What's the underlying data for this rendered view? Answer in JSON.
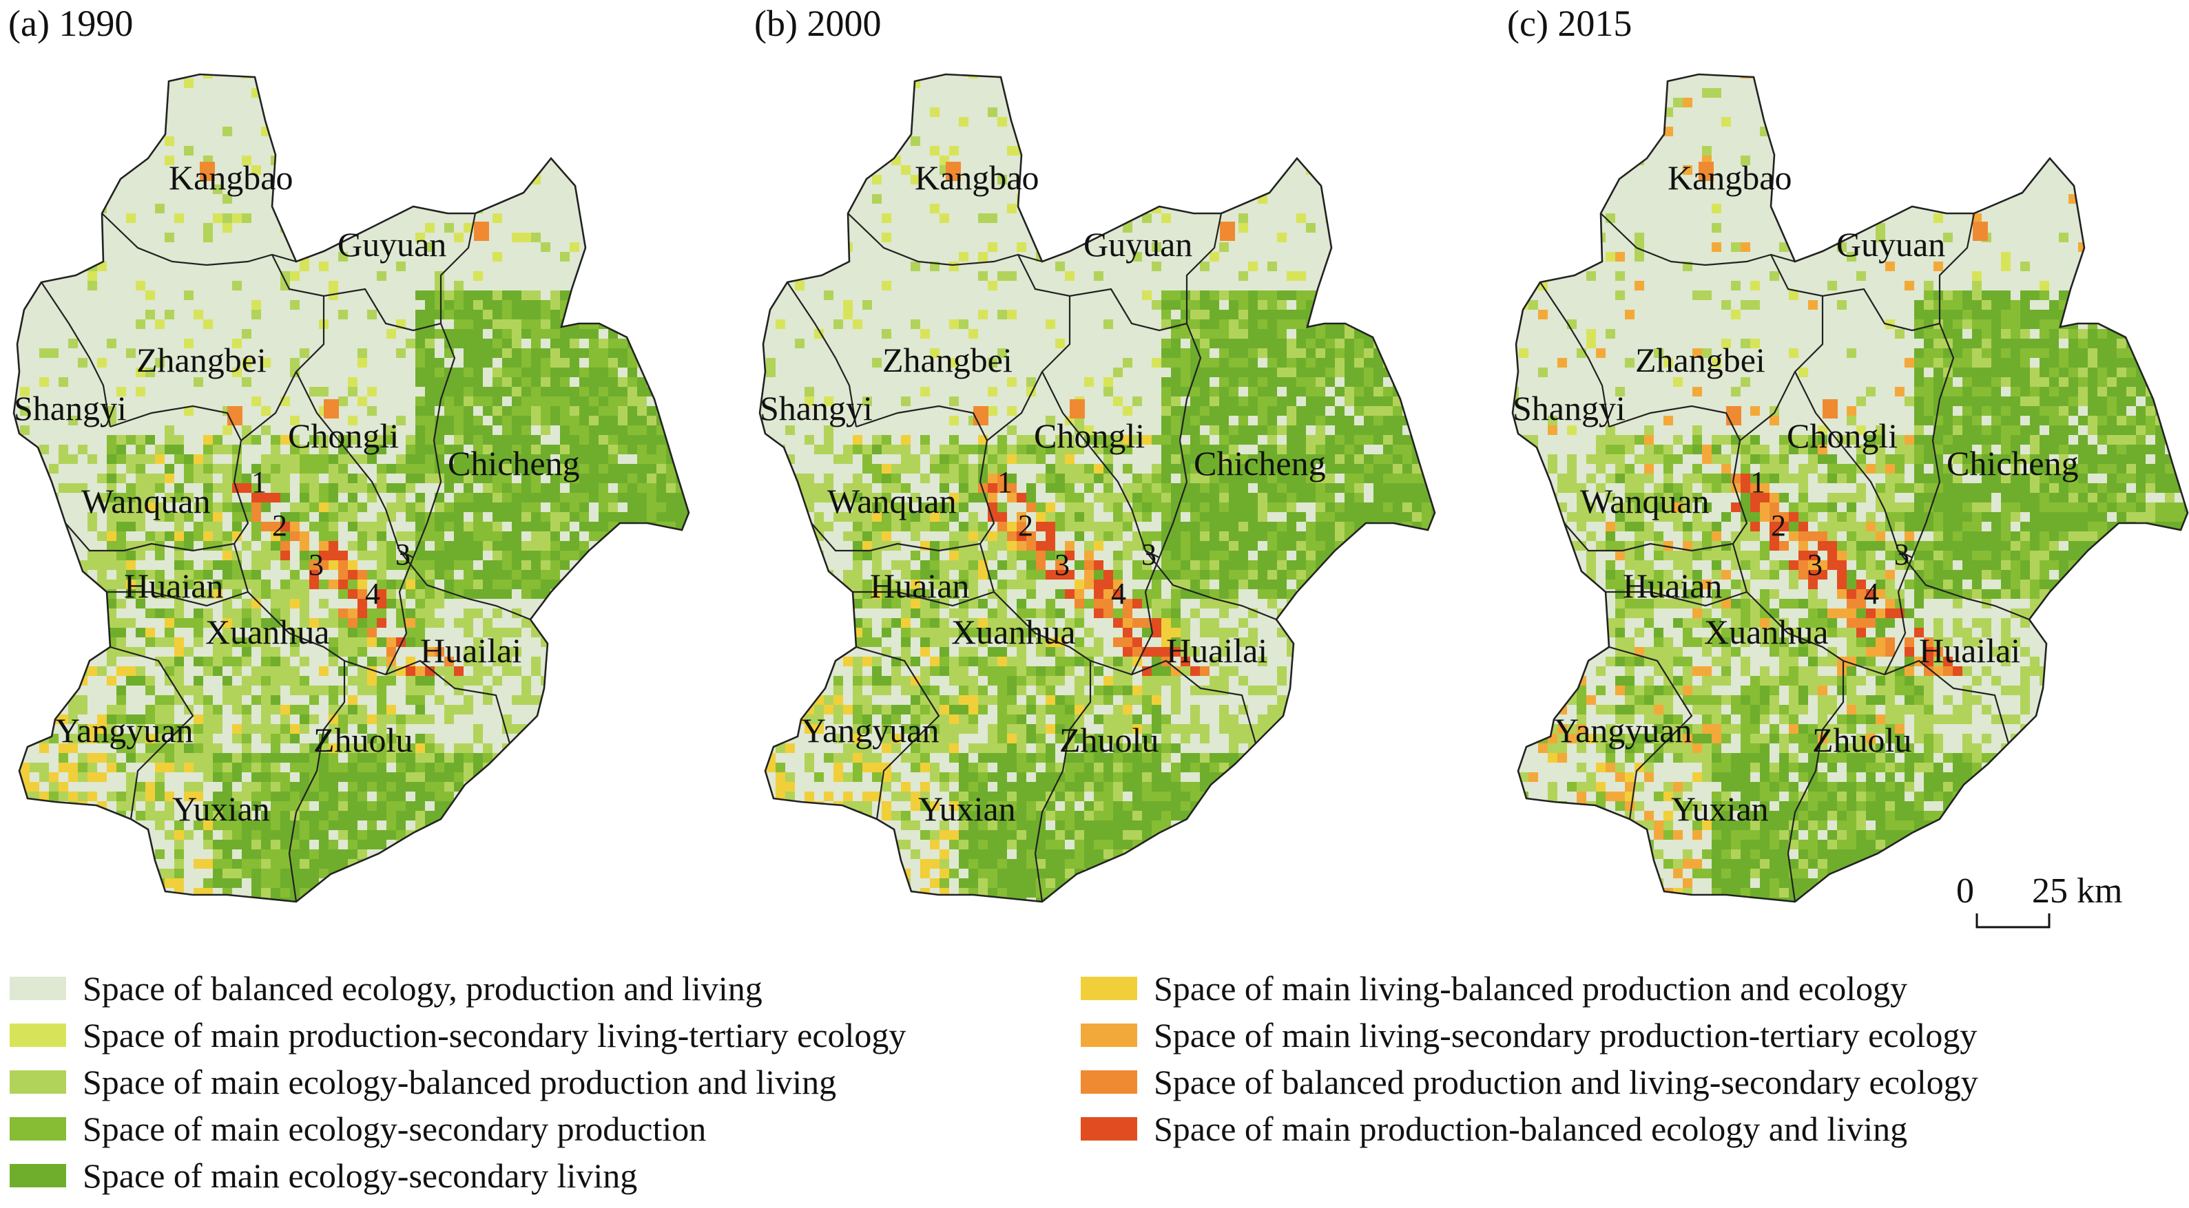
{
  "panels": [
    {
      "title": "(a) 1990",
      "labels": [
        "Kangbao",
        "Guyuan",
        "Zhangbei",
        "Shangyi",
        "Chongli",
        "Chicheng",
        "Wanquan",
        "Huaian",
        "Xuanhua",
        "Huailai",
        "Yangyuan",
        "Zhuolu",
        "Yuxian"
      ],
      "numbers": [
        "1",
        "2",
        "3",
        "3",
        "4"
      ]
    },
    {
      "title": "(b) 2000",
      "labels": [
        "Kangbao",
        "Guyuan",
        "Zhangbei",
        "Shangyi",
        "Chongli",
        "Chicheng",
        "Wanquan",
        "Huaian",
        "Xuanhua",
        "Huailai",
        "Yangyuan",
        "Zhuolu",
        "Yuxian"
      ],
      "numbers": [
        "1",
        "2",
        "3",
        "3",
        "4"
      ]
    },
    {
      "title": "(c) 2015",
      "labels": [
        "Kangbao",
        "Guyuan",
        "Zhangbei",
        "Shangyi",
        "Chongli",
        "Chicheng",
        "Wanquan",
        "Huaian",
        "Xuanhua",
        "Huailai",
        "Yangyuan",
        "Zhuolu",
        "Yuxian"
      ],
      "numbers": [
        "1",
        "2",
        "3",
        "3",
        "4"
      ]
    }
  ],
  "scale": {
    "zero": "0",
    "value": "25 km"
  },
  "legend": [
    {
      "label": "Space of balanced ecology, production and living",
      "color": "#dfe8d2"
    },
    {
      "label": "Space of main production-secondary living-tertiary ecology",
      "color": "#d7e45a"
    },
    {
      "label": "Space of main ecology-balanced production and living",
      "color": "#b2d35a"
    },
    {
      "label": "Space of main ecology-secondary production",
      "color": "#86bd34"
    },
    {
      "label": "Space of main ecology-secondary living",
      "color": "#6fae2c"
    },
    {
      "label": "Space of main living-balanced production and ecology",
      "color": "#f1cf3a"
    },
    {
      "label": "Space of main living-secondary production-tertiary ecology",
      "color": "#f3a93a"
    },
    {
      "label": "Space of balanced production and living-secondary ecology",
      "color": "#ef8a32"
    },
    {
      "label": "Space of main production-balanced ecology and living",
      "color": "#e14d20"
    }
  ]
}
